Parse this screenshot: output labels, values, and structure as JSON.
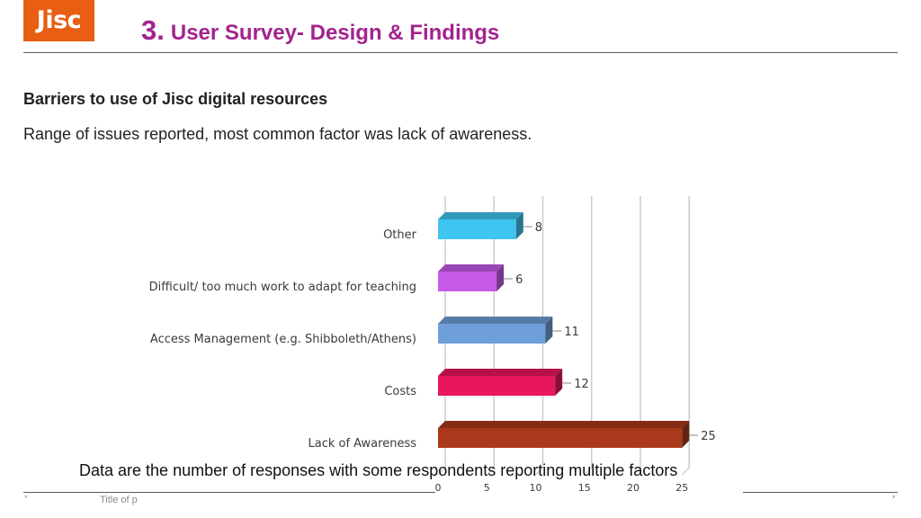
{
  "header": {
    "logo_text": "Jisc",
    "section_number": "3.",
    "title": "User Survey- Design & Findings"
  },
  "content": {
    "subtitle": "Barriers to use of Jisc digital resources",
    "text": "Range of issues reported, most common factor was lack of awareness.",
    "caption": "Data are the number of responses with some respondents reporting multiple factors"
  },
  "footer": {
    "left_marker": "*",
    "right_marker": "*",
    "title_fragment": "Title of p"
  },
  "colors": {
    "brand_orange": "#e85e13",
    "title_purple": "#a3238e"
  },
  "chart_data": {
    "type": "bar",
    "orientation": "horizontal",
    "style": "3d",
    "categories": [
      "Other",
      "Difficult/ too much work to adapt for teaching",
      "Access Management (e.g. Shibboleth/Athens)",
      "Costs",
      "Lack of Awareness"
    ],
    "values": [
      8,
      6,
      11,
      12,
      25
    ],
    "data_labels": [
      "8",
      "6",
      "11",
      "12",
      "25"
    ],
    "bar_colors": [
      "#3fc5ef",
      "#c65be8",
      "#6f9fd8",
      "#e8175d",
      "#a9391a"
    ],
    "xlim": [
      0,
      25
    ],
    "x_ticks": [
      0,
      5,
      10,
      15,
      20,
      25
    ],
    "x_tick_labels": [
      "0",
      "5",
      "10",
      "15",
      "20",
      "25"
    ],
    "grid": true,
    "legend": "none"
  }
}
